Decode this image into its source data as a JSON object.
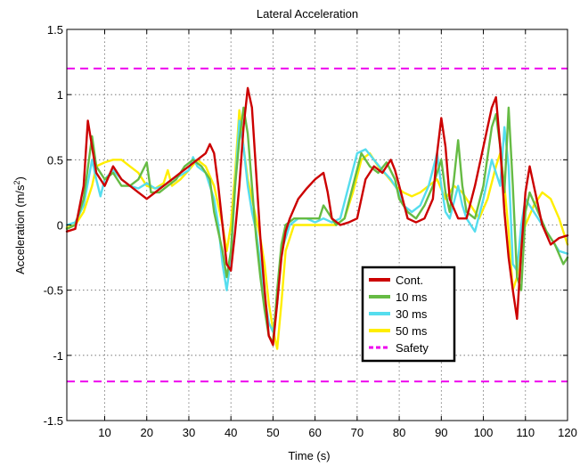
{
  "chart_data": {
    "type": "line",
    "title": "Lateral Acceleration",
    "xlabel": "Time (s)",
    "ylabel_main": "Acceleration (m/s",
    "ylabel_sup": "2",
    "ylabel_end": ")",
    "xlim": [
      1,
      120
    ],
    "ylim": [
      -1.5,
      1.5
    ],
    "xticks": [
      10,
      20,
      30,
      40,
      50,
      60,
      70,
      80,
      90,
      100,
      110,
      120
    ],
    "yticks": [
      -1.5,
      -1,
      -0.5,
      0,
      0.5,
      1,
      1.5
    ],
    "xtick_labels": [
      "10",
      "20",
      "30",
      "40",
      "50",
      "60",
      "70",
      "80",
      "90",
      "100",
      "110",
      "120"
    ],
    "ytick_labels": [
      "-1.5",
      "-1",
      "-0.5",
      "0",
      "0.5",
      "1",
      "1.5"
    ],
    "grid": true,
    "legend_position": "lower-right",
    "series": [
      {
        "name": "Cont.",
        "color": "#cc0000",
        "points": [
          [
            1,
            -0.05
          ],
          [
            3,
            -0.03
          ],
          [
            5,
            0.3
          ],
          [
            6,
            0.8
          ],
          [
            7,
            0.6
          ],
          [
            8,
            0.4
          ],
          [
            9,
            0.35
          ],
          [
            10,
            0.3
          ],
          [
            12,
            0.45
          ],
          [
            14,
            0.35
          ],
          [
            16,
            0.3
          ],
          [
            18,
            0.25
          ],
          [
            20,
            0.2
          ],
          [
            22,
            0.25
          ],
          [
            24,
            0.3
          ],
          [
            26,
            0.35
          ],
          [
            28,
            0.4
          ],
          [
            30,
            0.45
          ],
          [
            32,
            0.5
          ],
          [
            34,
            0.55
          ],
          [
            35,
            0.62
          ],
          [
            36,
            0.55
          ],
          [
            37,
            0.3
          ],
          [
            38,
            0.0
          ],
          [
            39,
            -0.3
          ],
          [
            40,
            -0.35
          ],
          [
            41,
            -0.05
          ],
          [
            42,
            0.3
          ],
          [
            43,
            0.75
          ],
          [
            44,
            1.05
          ],
          [
            45,
            0.9
          ],
          [
            46,
            0.4
          ],
          [
            47,
            -0.1
          ],
          [
            48,
            -0.5
          ],
          [
            49,
            -0.85
          ],
          [
            50,
            -0.92
          ],
          [
            51,
            -0.6
          ],
          [
            52,
            -0.25
          ],
          [
            53,
            -0.05
          ],
          [
            54,
            0.05
          ],
          [
            56,
            0.2
          ],
          [
            58,
            0.28
          ],
          [
            60,
            0.35
          ],
          [
            62,
            0.4
          ],
          [
            63,
            0.25
          ],
          [
            64,
            0.05
          ],
          [
            66,
            0.0
          ],
          [
            68,
            0.02
          ],
          [
            70,
            0.05
          ],
          [
            72,
            0.35
          ],
          [
            74,
            0.45
          ],
          [
            76,
            0.4
          ],
          [
            78,
            0.5
          ],
          [
            79,
            0.42
          ],
          [
            80,
            0.3
          ],
          [
            82,
            0.05
          ],
          [
            84,
            0.02
          ],
          [
            86,
            0.05
          ],
          [
            88,
            0.2
          ],
          [
            89,
            0.55
          ],
          [
            90,
            0.82
          ],
          [
            91,
            0.6
          ],
          [
            92,
            0.2
          ],
          [
            94,
            0.05
          ],
          [
            96,
            0.05
          ],
          [
            98,
            0.3
          ],
          [
            100,
            0.6
          ],
          [
            102,
            0.9
          ],
          [
            103,
            0.98
          ],
          [
            104,
            0.6
          ],
          [
            105,
            0.1
          ],
          [
            106,
            -0.25
          ],
          [
            107,
            -0.5
          ],
          [
            108,
            -0.72
          ],
          [
            109,
            -0.2
          ],
          [
            110,
            0.25
          ],
          [
            111,
            0.45
          ],
          [
            112,
            0.3
          ],
          [
            114,
            0.0
          ],
          [
            116,
            -0.15
          ],
          [
            118,
            -0.1
          ],
          [
            120,
            -0.08
          ]
        ]
      },
      {
        "name": "10 ms",
        "color": "#66bb44",
        "points": [
          [
            1,
            -0.03
          ],
          [
            3,
            0.0
          ],
          [
            5,
            0.2
          ],
          [
            7,
            0.68
          ],
          [
            8,
            0.45
          ],
          [
            10,
            0.35
          ],
          [
            12,
            0.4
          ],
          [
            14,
            0.3
          ],
          [
            16,
            0.3
          ],
          [
            18,
            0.35
          ],
          [
            20,
            0.48
          ],
          [
            21,
            0.25
          ],
          [
            23,
            0.25
          ],
          [
            25,
            0.3
          ],
          [
            27,
            0.35
          ],
          [
            29,
            0.45
          ],
          [
            31,
            0.5
          ],
          [
            33,
            0.45
          ],
          [
            35,
            0.35
          ],
          [
            36,
            0.1
          ],
          [
            37,
            -0.05
          ],
          [
            38,
            -0.2
          ],
          [
            39,
            -0.4
          ],
          [
            40,
            -0.2
          ],
          [
            41,
            0.3
          ],
          [
            42,
            0.65
          ],
          [
            43,
            0.9
          ],
          [
            44,
            0.7
          ],
          [
            45,
            0.3
          ],
          [
            46,
            -0.1
          ],
          [
            47,
            -0.4
          ],
          [
            48,
            -0.65
          ],
          [
            49,
            -0.85
          ],
          [
            50,
            -0.9
          ],
          [
            51,
            -0.5
          ],
          [
            52,
            -0.15
          ],
          [
            53,
            0.0
          ],
          [
            55,
            0.05
          ],
          [
            57,
            0.05
          ],
          [
            59,
            0.05
          ],
          [
            61,
            0.05
          ],
          [
            62,
            0.15
          ],
          [
            63,
            0.1
          ],
          [
            65,
            0.0
          ],
          [
            67,
            0.05
          ],
          [
            69,
            0.3
          ],
          [
            71,
            0.55
          ],
          [
            73,
            0.45
          ],
          [
            75,
            0.4
          ],
          [
            77,
            0.48
          ],
          [
            79,
            0.35
          ],
          [
            80,
            0.2
          ],
          [
            82,
            0.1
          ],
          [
            84,
            0.05
          ],
          [
            86,
            0.15
          ],
          [
            88,
            0.3
          ],
          [
            90,
            0.5
          ],
          [
            91,
            0.25
          ],
          [
            92,
            0.1
          ],
          [
            93,
            0.35
          ],
          [
            94,
            0.65
          ],
          [
            95,
            0.3
          ],
          [
            96,
            0.1
          ],
          [
            98,
            0.05
          ],
          [
            100,
            0.3
          ],
          [
            102,
            0.75
          ],
          [
            103,
            0.85
          ],
          [
            104,
            0.6
          ],
          [
            105,
            0.25
          ],
          [
            106,
            0.9
          ],
          [
            107,
            0.3
          ],
          [
            108,
            -0.4
          ],
          [
            109,
            -0.5
          ],
          [
            110,
            0.1
          ],
          [
            111,
            0.25
          ],
          [
            113,
            0.1
          ],
          [
            115,
            -0.05
          ],
          [
            117,
            -0.15
          ],
          [
            119,
            -0.3
          ],
          [
            120,
            -0.25
          ]
        ]
      },
      {
        "name": "30 ms",
        "color": "#55ddee",
        "points": [
          [
            1,
            0.0
          ],
          [
            3,
            0.02
          ],
          [
            5,
            0.15
          ],
          [
            7,
            0.5
          ],
          [
            8,
            0.35
          ],
          [
            9,
            0.22
          ],
          [
            10,
            0.35
          ],
          [
            12,
            0.42
          ],
          [
            14,
            0.35
          ],
          [
            16,
            0.3
          ],
          [
            18,
            0.28
          ],
          [
            20,
            0.32
          ],
          [
            22,
            0.28
          ],
          [
            24,
            0.3
          ],
          [
            26,
            0.35
          ],
          [
            28,
            0.38
          ],
          [
            30,
            0.42
          ],
          [
            31,
            0.52
          ],
          [
            32,
            0.45
          ],
          [
            34,
            0.4
          ],
          [
            36,
            0.2
          ],
          [
            37,
            0.0
          ],
          [
            38,
            -0.3
          ],
          [
            39,
            -0.5
          ],
          [
            40,
            -0.25
          ],
          [
            41,
            0.3
          ],
          [
            42,
            0.8
          ],
          [
            43,
            0.6
          ],
          [
            44,
            0.3
          ],
          [
            45,
            0.1
          ],
          [
            46,
            -0.05
          ],
          [
            47,
            -0.3
          ],
          [
            48,
            -0.55
          ],
          [
            49,
            -0.75
          ],
          [
            50,
            -0.82
          ],
          [
            51,
            -0.6
          ],
          [
            52,
            -0.2
          ],
          [
            54,
            0.0
          ],
          [
            56,
            0.05
          ],
          [
            58,
            0.05
          ],
          [
            60,
            0.02
          ],
          [
            62,
            0.05
          ],
          [
            64,
            0.02
          ],
          [
            66,
            0.05
          ],
          [
            68,
            0.3
          ],
          [
            70,
            0.55
          ],
          [
            72,
            0.58
          ],
          [
            74,
            0.5
          ],
          [
            76,
            0.42
          ],
          [
            78,
            0.35
          ],
          [
            80,
            0.25
          ],
          [
            81,
            0.15
          ],
          [
            83,
            0.1
          ],
          [
            85,
            0.15
          ],
          [
            87,
            0.3
          ],
          [
            89,
            0.55
          ],
          [
            90,
            0.3
          ],
          [
            91,
            0.1
          ],
          [
            92,
            0.05
          ],
          [
            94,
            0.3
          ],
          [
            95,
            0.15
          ],
          [
            96,
            0.05
          ],
          [
            98,
            -0.05
          ],
          [
            100,
            0.2
          ],
          [
            102,
            0.5
          ],
          [
            104,
            0.3
          ],
          [
            105,
            0.75
          ],
          [
            106,
            0.45
          ],
          [
            107,
            -0.3
          ],
          [
            108,
            -0.35
          ],
          [
            109,
            0.0
          ],
          [
            110,
            0.2
          ],
          [
            112,
            0.1
          ],
          [
            114,
            0.0
          ],
          [
            116,
            -0.1
          ],
          [
            118,
            -0.2
          ],
          [
            120,
            -0.22
          ]
        ]
      },
      {
        "name": "50 ms",
        "color": "#ffee00",
        "points": [
          [
            1,
            -0.02
          ],
          [
            3,
            0.0
          ],
          [
            5,
            0.1
          ],
          [
            7,
            0.3
          ],
          [
            8,
            0.45
          ],
          [
            10,
            0.48
          ],
          [
            12,
            0.5
          ],
          [
            14,
            0.5
          ],
          [
            16,
            0.45
          ],
          [
            18,
            0.4
          ],
          [
            20,
            0.3
          ],
          [
            22,
            0.28
          ],
          [
            24,
            0.32
          ],
          [
            25,
            0.42
          ],
          [
            26,
            0.3
          ],
          [
            28,
            0.35
          ],
          [
            30,
            0.42
          ],
          [
            32,
            0.5
          ],
          [
            34,
            0.45
          ],
          [
            36,
            0.3
          ],
          [
            37,
            0.15
          ],
          [
            38,
            0.0
          ],
          [
            39,
            -0.2
          ],
          [
            40,
            0.0
          ],
          [
            41,
            0.4
          ],
          [
            42,
            0.88
          ],
          [
            43,
            0.6
          ],
          [
            44,
            0.35
          ],
          [
            45,
            0.2
          ],
          [
            46,
            0.05
          ],
          [
            47,
            -0.1
          ],
          [
            48,
            -0.3
          ],
          [
            49,
            -0.6
          ],
          [
            50,
            -0.8
          ],
          [
            51,
            -0.95
          ],
          [
            52,
            -0.6
          ],
          [
            53,
            -0.2
          ],
          [
            55,
            0.0
          ],
          [
            57,
            0.0
          ],
          [
            59,
            0.0
          ],
          [
            61,
            0.0
          ],
          [
            63,
            0.0
          ],
          [
            65,
            0.0
          ],
          [
            67,
            0.05
          ],
          [
            69,
            0.25
          ],
          [
            71,
            0.5
          ],
          [
            73,
            0.55
          ],
          [
            75,
            0.45
          ],
          [
            77,
            0.38
          ],
          [
            79,
            0.3
          ],
          [
            81,
            0.25
          ],
          [
            83,
            0.22
          ],
          [
            85,
            0.25
          ],
          [
            87,
            0.3
          ],
          [
            89,
            0.35
          ],
          [
            91,
            0.2
          ],
          [
            93,
            0.3
          ],
          [
            95,
            0.25
          ],
          [
            97,
            0.15
          ],
          [
            99,
            0.05
          ],
          [
            101,
            0.2
          ],
          [
            103,
            0.45
          ],
          [
            104,
            0.55
          ],
          [
            105,
            0.3
          ],
          [
            106,
            -0.05
          ],
          [
            107,
            -0.5
          ],
          [
            108,
            -0.4
          ],
          [
            109,
            -0.1
          ],
          [
            110,
            0.0
          ],
          [
            112,
            0.15
          ],
          [
            114,
            0.25
          ],
          [
            116,
            0.2
          ],
          [
            118,
            0.05
          ],
          [
            120,
            -0.15
          ]
        ]
      },
      {
        "name": "Safety",
        "color": "#ee00ee",
        "dashed": true,
        "points": [
          [
            1,
            1.2
          ],
          [
            120,
            1.2
          ]
        ]
      },
      {
        "name": "",
        "color": "#ee00ee",
        "dashed": true,
        "points": [
          [
            1,
            -1.2
          ],
          [
            120,
            -1.2
          ]
        ]
      }
    ]
  }
}
